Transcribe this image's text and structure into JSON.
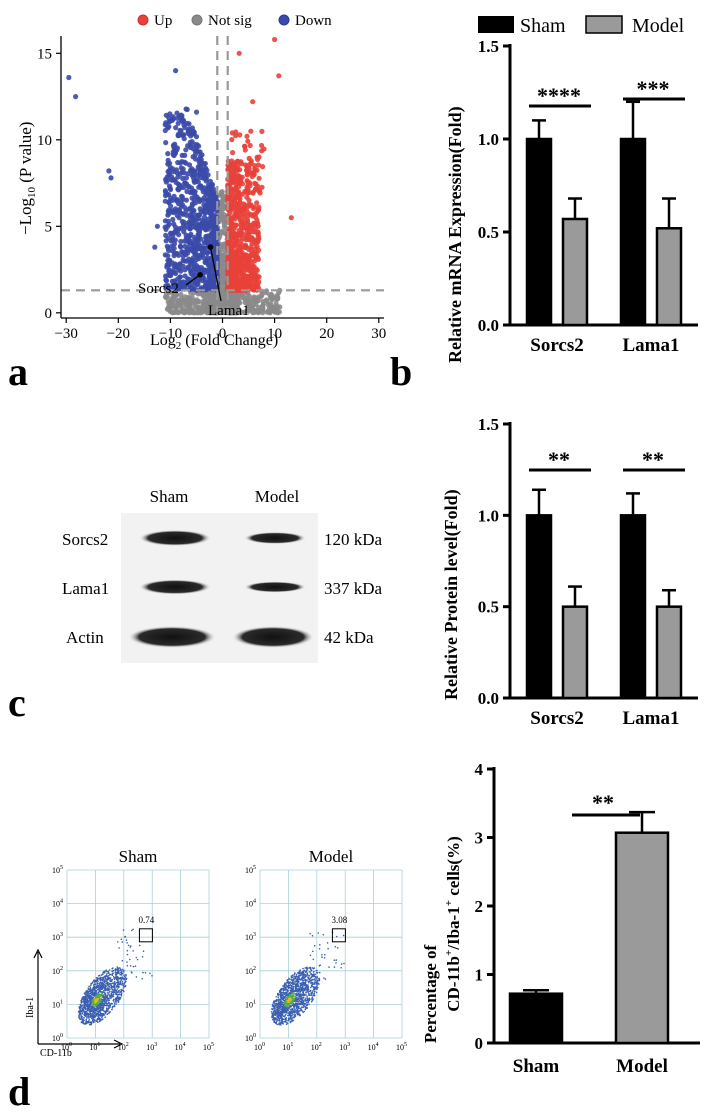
{
  "panel_labels": {
    "a": "a",
    "b": "b",
    "c": "c",
    "d": "d"
  },
  "colors": {
    "up": "#e8413a",
    "down": "#3a4aa8",
    "notsig": "#8a8a8a",
    "sham": "#000000",
    "model": "#9a9a9a",
    "western_band": "#222222"
  },
  "chart_data": [
    {
      "id": "a",
      "type": "scatter",
      "subtype": "volcano",
      "legend": {
        "up": "Up",
        "notsig": "Not sig",
        "down": "Down"
      },
      "xlabel": "Log2 (Fold Change)",
      "xlabel_main": "Log",
      "xlabel_sub": "2",
      "xlabel_rest": " (Fold Change)",
      "ylabel_main": "−Log",
      "ylabel_sub": "10",
      "ylabel_rest": " (P value)",
      "xlim": [
        -31,
        31
      ],
      "ylim": [
        -0.3,
        16
      ],
      "xticks": [
        -30,
        -20,
        -10,
        0,
        10,
        20,
        30
      ],
      "yticks": [
        0,
        5,
        10,
        15
      ],
      "thresholds": {
        "x": [
          -1,
          1
        ],
        "y": 1.3
      },
      "annotations": [
        {
          "label": "Sorcs2",
          "x": -4.3,
          "y": 2.2
        },
        {
          "label": "Lama1",
          "x": -2.3,
          "y": 3.8
        }
      ],
      "highlight_points": [
        {
          "x": -29.5,
          "y": 13.6,
          "group": "down"
        },
        {
          "x": -28.2,
          "y": 12.5,
          "group": "down"
        },
        {
          "x": -21.8,
          "y": 8.2,
          "group": "down"
        },
        {
          "x": -21.4,
          "y": 7.8,
          "group": "down"
        },
        {
          "x": -12.5,
          "y": 5.0,
          "group": "down"
        },
        {
          "x": -13.0,
          "y": 3.8,
          "group": "down"
        },
        {
          "x": -9.0,
          "y": 14.0,
          "group": "down"
        },
        {
          "x": -5.0,
          "y": 11.6,
          "group": "down"
        },
        {
          "x": 10.8,
          "y": 13.7,
          "group": "up"
        },
        {
          "x": 10.0,
          "y": 15.8,
          "group": "up"
        },
        {
          "x": 3.2,
          "y": 15.0,
          "group": "up"
        },
        {
          "x": 5.8,
          "y": 12.2,
          "group": "up"
        },
        {
          "x": 13.2,
          "y": 5.5,
          "group": "up"
        }
      ]
    },
    {
      "id": "b",
      "type": "bar",
      "ylabel": "Relative mRNA Expression(Fold)",
      "categories": [
        "Sorcs2",
        "Lama1"
      ],
      "series": [
        {
          "name": "Sham",
          "values": [
            1.0,
            1.0
          ],
          "errors": [
            0.1,
            0.2
          ]
        },
        {
          "name": "Model",
          "values": [
            0.57,
            0.52
          ],
          "errors": [
            0.11,
            0.16
          ]
        }
      ],
      "ylim": [
        0,
        1.5
      ],
      "yticks": [
        "0.0",
        "0.5",
        "1.0",
        "1.5"
      ],
      "significance": [
        "****",
        "***"
      ]
    },
    {
      "id": "c",
      "type": "bar",
      "ylabel": "Relative Protein level(Fold)",
      "categories": [
        "Sorcs2",
        "Lama1"
      ],
      "series": [
        {
          "name": "Sham",
          "values": [
            1.0,
            1.0
          ],
          "errors": [
            0.14,
            0.12
          ]
        },
        {
          "name": "Model",
          "values": [
            0.5,
            0.5
          ],
          "errors": [
            0.11,
            0.09
          ]
        }
      ],
      "ylim": [
        0,
        1.5
      ],
      "yticks": [
        "0.0",
        "0.5",
        "1.0",
        "1.5"
      ],
      "significance": [
        "**",
        "**"
      ]
    },
    {
      "id": "d",
      "type": "bar",
      "ylabel_line1": "Percentage of",
      "ylabel_line2_parts": [
        "CD-11b",
        "+",
        "/Iba-1",
        "+",
        " cells(%)"
      ],
      "categories": [
        "Sham",
        "Model"
      ],
      "values": [
        0.72,
        3.07
      ],
      "errors": [
        0.05,
        0.3
      ],
      "ylim": [
        0,
        4
      ],
      "yticks": [
        "0",
        "1",
        "2",
        "3",
        "4"
      ],
      "significance": "**"
    }
  ],
  "western_blot": {
    "columns": [
      "Sham",
      "Model"
    ],
    "rows": [
      {
        "protein": "Sorcs2",
        "size": "120 kDa"
      },
      {
        "protein": "Lama1",
        "size": "337 kDa"
      },
      {
        "protein": "Actin",
        "size": "42 kDa"
      }
    ]
  },
  "flow_cytometry": {
    "plots": [
      {
        "title": "Sham",
        "gate_value": "0.74"
      },
      {
        "title": "Model",
        "gate_value": "3.08"
      }
    ],
    "y_axis": "Iba-1",
    "x_axis": "CD-11b",
    "tick_labels": {
      "t0": "10",
      "t1": "10",
      "t2": "10",
      "t3": "10",
      "t4": "10",
      "t5": "10"
    },
    "tick_exponents": [
      "0",
      "1",
      "2",
      "3",
      "4",
      "5"
    ]
  }
}
